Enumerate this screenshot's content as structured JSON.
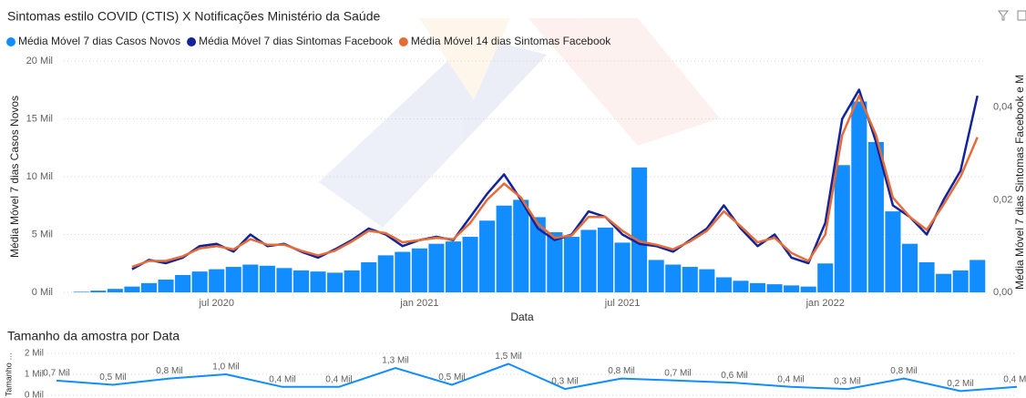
{
  "chart_data": [
    {
      "type": "combo",
      "title": "Sintomas estilo COVID (CTIS) X Notificações Ministério da Saúde",
      "x_label": "Data",
      "y_label": "Média Móvel 7 dias Casos Novos",
      "y2_label": "Média Móvel 7 dias Sintomas Facebook e M",
      "categories": [
        null,
        null,
        null,
        null,
        null,
        null,
        null,
        null,
        "jul 2020",
        null,
        null,
        null,
        null,
        null,
        null,
        null,
        null,
        null,
        null,
        null,
        "jan 2021",
        null,
        null,
        null,
        null,
        null,
        null,
        null,
        null,
        null,
        null,
        null,
        "jul 2021",
        null,
        null,
        null,
        null,
        null,
        null,
        null,
        null,
        null,
        null,
        null,
        "jan 2022",
        null,
        null,
        null,
        null,
        null,
        null,
        null,
        null,
        null
      ],
      "ylim": [
        0,
        20000
      ],
      "yticks": [
        {
          "value": 0,
          "label": "0 Mil"
        },
        {
          "value": 5000,
          "label": "5 Mil"
        },
        {
          "value": 10000,
          "label": "10 Mil"
        },
        {
          "value": 15000,
          "label": "15 Mil"
        },
        {
          "value": 20000,
          "label": "20 Mil"
        }
      ],
      "y2lim": [
        0,
        0.05
      ],
      "y2ticks": [
        {
          "value": 0,
          "label": "0,00"
        },
        {
          "value": 0.02,
          "label": "0,02"
        },
        {
          "value": 0.04,
          "label": "0,04"
        }
      ],
      "grid": true,
      "series": [
        {
          "name": "Média Móvel 7 dias Casos Novos",
          "type": "bar",
          "color": "#118DFF",
          "values": [
            50,
            150,
            300,
            500,
            800,
            1100,
            1500,
            1800,
            2000,
            2200,
            2400,
            2300,
            2100,
            1900,
            1800,
            1700,
            1900,
            2600,
            3200,
            3500,
            3800,
            4200,
            4400,
            4800,
            6200,
            7500,
            8000,
            6500,
            5200,
            4800,
            5400,
            5600,
            4300,
            10800,
            2800,
            2400,
            2200,
            2000,
            1300,
            1000,
            800,
            700,
            600,
            500,
            2500,
            11000,
            16500,
            13000,
            7000,
            4200,
            2600,
            1600,
            1900,
            2800
          ]
        },
        {
          "name": "Média Móvel 7 dias Sintomas Facebook",
          "type": "line",
          "axis": "y2",
          "color": "#12239E",
          "values": [
            null,
            null,
            null,
            0.005,
            0.007,
            0.0063,
            0.0075,
            0.01,
            0.0105,
            0.0088,
            0.0125,
            0.01,
            0.0105,
            0.0088,
            0.0075,
            0.0093,
            0.0113,
            0.0138,
            0.0125,
            0.01,
            0.0113,
            0.012,
            0.0113,
            0.0163,
            0.0213,
            0.0255,
            0.02,
            0.0138,
            0.0113,
            0.0125,
            0.0175,
            0.0163,
            0.0125,
            0.0105,
            0.01,
            0.0088,
            0.0113,
            0.0138,
            0.0188,
            0.0138,
            0.01,
            0.0125,
            0.0075,
            0.0063,
            0.015,
            0.0375,
            0.0438,
            0.0325,
            0.0188,
            0.0163,
            0.0125,
            0.02,
            0.0263,
            0.0425
          ]
        },
        {
          "name": "Média Móvel 14 dias Sintomas Facebook",
          "type": "line",
          "axis": "y2",
          "color": "#E66C37",
          "values": [
            null,
            null,
            null,
            0.0055,
            0.0068,
            0.0068,
            0.0078,
            0.0095,
            0.01,
            0.0093,
            0.0115,
            0.0103,
            0.0103,
            0.009,
            0.008,
            0.009,
            0.011,
            0.0133,
            0.0128,
            0.0108,
            0.0113,
            0.0118,
            0.0115,
            0.015,
            0.02,
            0.0235,
            0.0205,
            0.0148,
            0.0118,
            0.0123,
            0.0163,
            0.0163,
            0.0133,
            0.011,
            0.0103,
            0.0093,
            0.011,
            0.0133,
            0.0175,
            0.0143,
            0.0108,
            0.0118,
            0.0085,
            0.0068,
            0.0125,
            0.034,
            0.0425,
            0.034,
            0.0205,
            0.0163,
            0.0135,
            0.019,
            0.025,
            0.0335
          ]
        }
      ]
    },
    {
      "type": "line",
      "title": "Tamanho da amostra por Data",
      "y_label": "Tamanho …",
      "ylim": [
        0,
        2000
      ],
      "yticks": [
        {
          "value": 0,
          "label": "0 Mil"
        },
        {
          "value": 1000,
          "label": "1 Mil"
        },
        {
          "value": 2000,
          "label": "2 Mil"
        }
      ],
      "grid": true,
      "color": "#118DFF",
      "values": [
        700,
        500,
        800,
        1000,
        400,
        400,
        1300,
        500,
        1500,
        300,
        800,
        700,
        600,
        400,
        300,
        800,
        200,
        400
      ],
      "value_labels": [
        "0,7 Mil",
        "0,5 Mil",
        "0,8 Mil",
        "1,0 Mil",
        "0,4 Mil",
        "0,4 Mil",
        "1,3 Mil",
        "0,5 Mil",
        "1,5 Mil",
        "0,3 Mil",
        "0,8 Mil",
        "0,7 Mil",
        "0,6 Mil",
        "0,4 Mil",
        "0,3 Mil",
        "0,8 Mil",
        "0,2 Mil",
        "0,4 Mil"
      ]
    }
  ]
}
